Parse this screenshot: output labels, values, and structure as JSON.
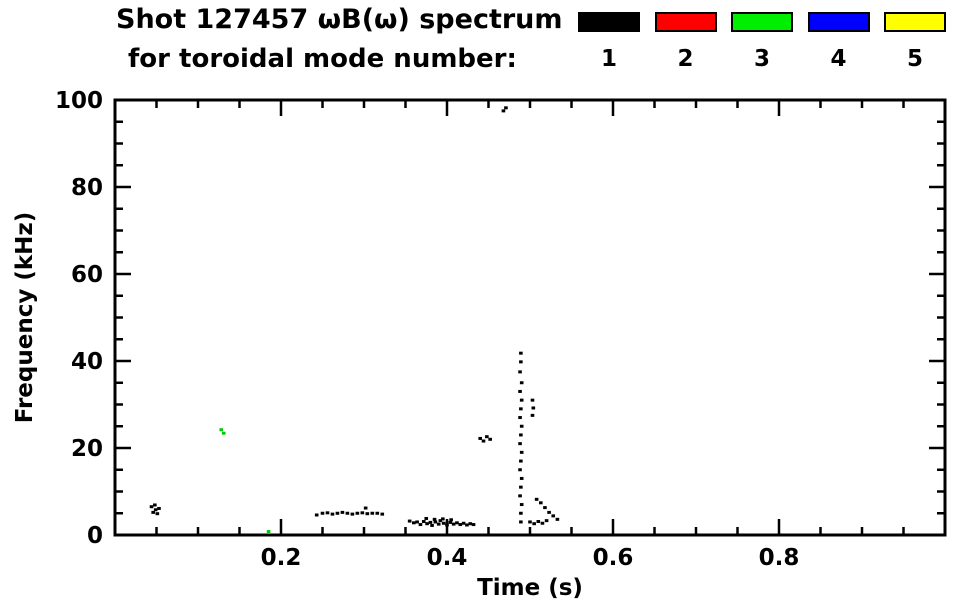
{
  "chart_data": {
    "type": "scatter",
    "title_line1": "Shot 127457 ωB(ω) spectrum",
    "title_line2": "for toroidal mode number:",
    "xlabel": "Time (s)",
    "ylabel": "Frequency (kHz)",
    "xlim": [
      0.0,
      1.0
    ],
    "ylim": [
      0,
      100
    ],
    "x_ticks": [
      {
        "v": 0.2,
        "label": "0.2"
      },
      {
        "v": 0.4,
        "label": "0.4"
      },
      {
        "v": 0.6,
        "label": "0.6"
      },
      {
        "v": 0.8,
        "label": "0.8"
      }
    ],
    "x_minor_step": 0.05,
    "y_ticks": [
      {
        "v": 0,
        "label": "0"
      },
      {
        "v": 20,
        "label": "20"
      },
      {
        "v": 40,
        "label": "40"
      },
      {
        "v": 60,
        "label": "60"
      },
      {
        "v": 80,
        "label": "80"
      },
      {
        "v": 100,
        "label": "100"
      }
    ],
    "y_minor_step": 5,
    "legend": [
      {
        "label": "1",
        "color": "#000000"
      },
      {
        "label": "2",
        "color": "#ff0000"
      },
      {
        "label": "3",
        "color": "#00ee00"
      },
      {
        "label": "4",
        "color": "#0000ff"
      },
      {
        "label": "5",
        "color": "#ffff00"
      }
    ],
    "series": [
      {
        "name": "mode-1",
        "color": "#000000",
        "points": [
          [
            0.044,
            6.5
          ],
          [
            0.046,
            5.2
          ],
          [
            0.048,
            6.9
          ],
          [
            0.049,
            5.8
          ],
          [
            0.051,
            4.9
          ],
          [
            0.053,
            6.1
          ],
          [
            0.243,
            4.6
          ],
          [
            0.25,
            5.0
          ],
          [
            0.256,
            5.1
          ],
          [
            0.262,
            4.8
          ],
          [
            0.268,
            5.0
          ],
          [
            0.274,
            5.2
          ],
          [
            0.28,
            5.0
          ],
          [
            0.286,
            4.8
          ],
          [
            0.292,
            5.0
          ],
          [
            0.298,
            5.1
          ],
          [
            0.302,
            6.2
          ],
          [
            0.304,
            4.9
          ],
          [
            0.31,
            5.0
          ],
          [
            0.316,
            5.0
          ],
          [
            0.322,
            4.8
          ],
          [
            0.355,
            3.2
          ],
          [
            0.36,
            2.8
          ],
          [
            0.364,
            3.0
          ],
          [
            0.368,
            2.4
          ],
          [
            0.372,
            3.1
          ],
          [
            0.375,
            3.8
          ],
          [
            0.376,
            2.6
          ],
          [
            0.38,
            2.9
          ],
          [
            0.382,
            2.2
          ],
          [
            0.385,
            3.6
          ],
          [
            0.386,
            3.0
          ],
          [
            0.39,
            2.5
          ],
          [
            0.392,
            3.3
          ],
          [
            0.395,
            3.7
          ],
          [
            0.396,
            2.7
          ],
          [
            0.4,
            2.3
          ],
          [
            0.404,
            2.9
          ],
          [
            0.405,
            3.5
          ],
          [
            0.408,
            2.5
          ],
          [
            0.412,
            2.8
          ],
          [
            0.416,
            2.4
          ],
          [
            0.42,
            2.7
          ],
          [
            0.424,
            2.3
          ],
          [
            0.428,
            2.6
          ],
          [
            0.432,
            2.4
          ],
          [
            0.44,
            22.2
          ],
          [
            0.444,
            21.6
          ],
          [
            0.448,
            22.6
          ],
          [
            0.452,
            22.0
          ],
          [
            0.468,
            97.5
          ],
          [
            0.471,
            98.2
          ],
          [
            0.489,
            41.8
          ],
          [
            0.489,
            39.8
          ],
          [
            0.488,
            37.5
          ],
          [
            0.49,
            35.0
          ],
          [
            0.488,
            33.0
          ],
          [
            0.49,
            31.0
          ],
          [
            0.489,
            29.0
          ],
          [
            0.488,
            27.0
          ],
          [
            0.49,
            25.0
          ],
          [
            0.489,
            23.0
          ],
          [
            0.488,
            21.0
          ],
          [
            0.49,
            19.0
          ],
          [
            0.489,
            17.0
          ],
          [
            0.488,
            15.0
          ],
          [
            0.49,
            13.0
          ],
          [
            0.489,
            11.0
          ],
          [
            0.488,
            9.0
          ],
          [
            0.49,
            7.0
          ],
          [
            0.489,
            5.0
          ],
          [
            0.489,
            3.0
          ],
          [
            0.503,
            31.0
          ],
          [
            0.504,
            29.2
          ],
          [
            0.503,
            27.5
          ],
          [
            0.5,
            3.0
          ],
          [
            0.505,
            2.6
          ],
          [
            0.508,
            8.2
          ],
          [
            0.51,
            3.1
          ],
          [
            0.513,
            7.4
          ],
          [
            0.515,
            2.7
          ],
          [
            0.518,
            6.3
          ],
          [
            0.52,
            3.3
          ],
          [
            0.523,
            5.2
          ],
          [
            0.528,
            4.4
          ],
          [
            0.533,
            3.6
          ]
        ]
      },
      {
        "name": "mode-2",
        "color": "#ff0000",
        "points": []
      },
      {
        "name": "mode-3",
        "color": "#00cc00",
        "points": [
          [
            0.128,
            24.2
          ],
          [
            0.131,
            23.4
          ],
          [
            0.185,
            0.8
          ]
        ]
      },
      {
        "name": "mode-4",
        "color": "#0000ff",
        "points": []
      },
      {
        "name": "mode-5",
        "color": "#ffff00",
        "points": []
      }
    ],
    "grid": false,
    "legend_position": "top-right"
  }
}
